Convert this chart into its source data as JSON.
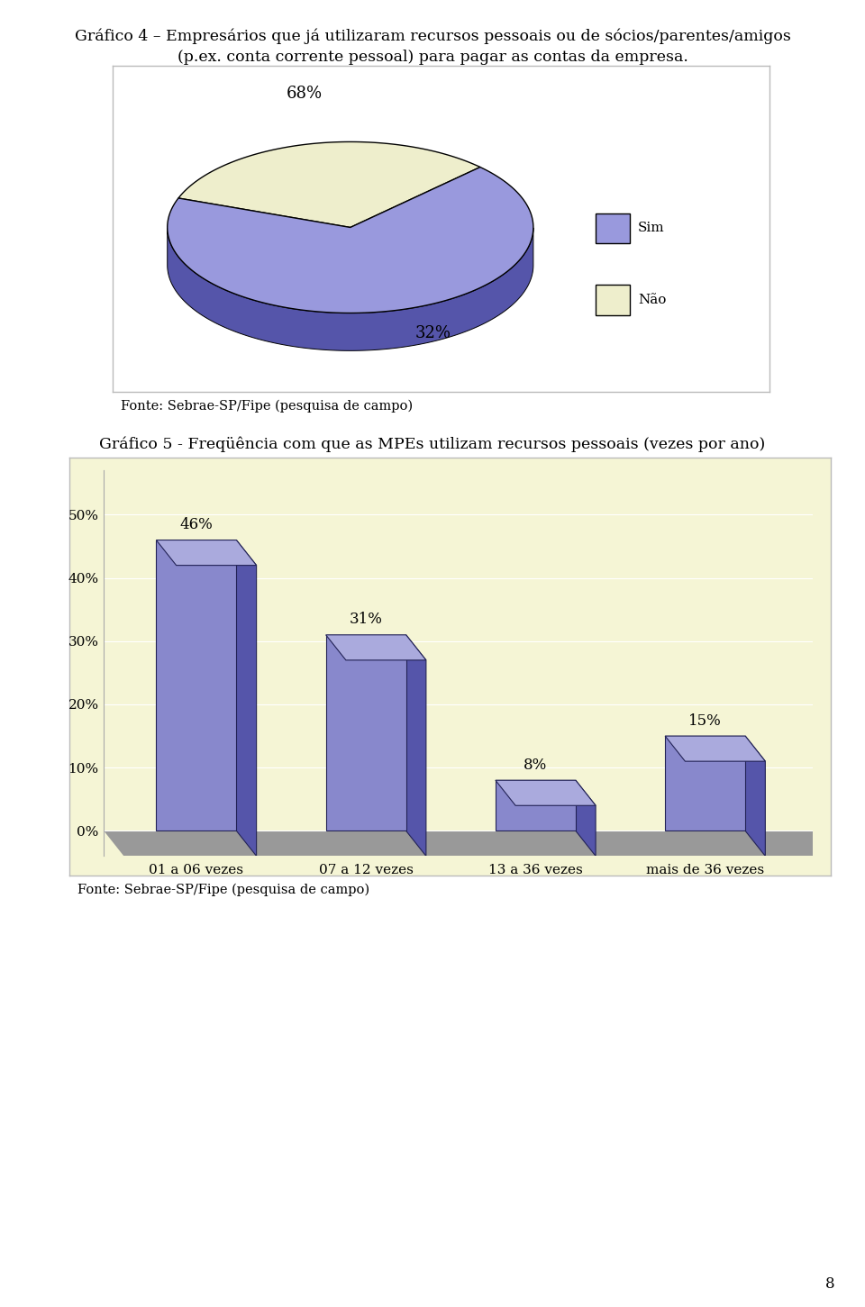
{
  "page_bg": "#ffffff",
  "title1_line1": "Gráfico 4 – Empresários que já utilizaram recursos pessoais ou de sócios/parentes/amigos",
  "title1_line2": "(p.ex. conta corrente pessoal) para pagar as contas da empresa.",
  "pie_values": [
    68,
    32
  ],
  "pie_labels_pct": [
    "68%",
    "32%"
  ],
  "pie_color_sim_top": "#9999dd",
  "pie_color_sim_side": "#5555aa",
  "pie_color_nao_top": "#eeeecc",
  "pie_color_nao_side": "#999977",
  "legend_labels": [
    "Sim",
    "Não"
  ],
  "legend_colors": [
    "#9999dd",
    "#eeeecc"
  ],
  "fonte1": "Fonte: Sebrae-SP/Fipe (pesquisa de campo)",
  "title2": "Gráfico 5 - Freqüência com que as MPEs utilizam recursos pessoais (vezes por ano)",
  "bar_categories": [
    "01 a 06 vezes",
    "07 a 12 vezes",
    "13 a 36 vezes",
    "mais de 36 vezes"
  ],
  "bar_values": [
    46,
    31,
    8,
    15
  ],
  "bar_labels": [
    "46%",
    "31%",
    "8%",
    "15%"
  ],
  "bar_color_front": "#8888cc",
  "bar_color_side": "#5555aa",
  "bar_color_top": "#aaaadd",
  "bar_bg": "#f5f5d5",
  "floor_color": "#999999",
  "yticks": [
    0,
    10,
    20,
    30,
    40,
    50
  ],
  "ytick_labels": [
    "0%",
    "10%",
    "20%",
    "30%",
    "40%",
    "50%"
  ],
  "fonte2": "Fonte: Sebrae-SP/Fipe (pesquisa de campo)",
  "page_number": "8"
}
